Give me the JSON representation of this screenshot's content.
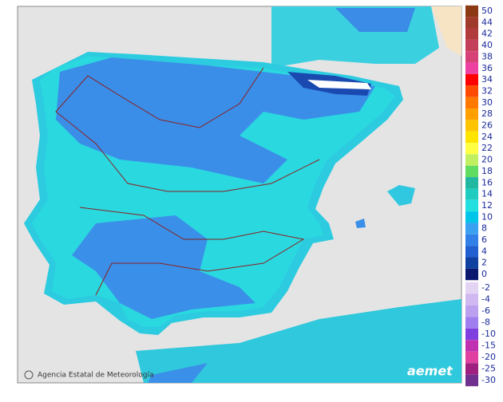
{
  "legend": {
    "warm": [
      {
        "value": 50,
        "color": "#8b3a14"
      },
      {
        "value": 44,
        "color": "#a03a2a"
      },
      {
        "value": 42,
        "color": "#b23c3c"
      },
      {
        "value": 40,
        "color": "#c4405a"
      },
      {
        "value": 38,
        "color": "#d64278"
      },
      {
        "value": 36,
        "color": "#ee40a0"
      },
      {
        "value": 34,
        "color": "#ff0000"
      },
      {
        "value": 32,
        "color": "#ff4a00"
      },
      {
        "value": 30,
        "color": "#ff7800"
      },
      {
        "value": 28,
        "color": "#ffa000"
      },
      {
        "value": 26,
        "color": "#ffc400"
      },
      {
        "value": 24,
        "color": "#ffe400"
      },
      {
        "value": 22,
        "color": "#ffff44"
      },
      {
        "value": 20,
        "color": "#c0f060"
      },
      {
        "value": 18,
        "color": "#60dc60"
      },
      {
        "value": 16,
        "color": "#20b8a0"
      },
      {
        "value": 14,
        "color": "#20ccc0"
      },
      {
        "value": 12,
        "color": "#22e0e0"
      },
      {
        "value": 10,
        "color": "#00c4e8"
      },
      {
        "value": 8,
        "color": "#3aa0f0"
      },
      {
        "value": 6,
        "color": "#3080e8"
      },
      {
        "value": 4,
        "color": "#2060d0"
      },
      {
        "value": 2,
        "color": "#1040a0"
      },
      {
        "value": 0,
        "color": "#0a1870"
      }
    ],
    "cold": [
      {
        "value": -2,
        "color": "#e4d4f4"
      },
      {
        "value": -4,
        "color": "#d0b8f0"
      },
      {
        "value": -6,
        "color": "#bca0f0"
      },
      {
        "value": -8,
        "color": "#a07ef0"
      },
      {
        "value": -10,
        "color": "#8040e0"
      },
      {
        "value": -15,
        "color": "#c030b0"
      },
      {
        "value": -20,
        "color": "#e040a0"
      },
      {
        "value": -25,
        "color": "#a02080"
      },
      {
        "value": -30,
        "color": "#703090"
      }
    ]
  },
  "attribution": "Agencia Estatal de Meteorología",
  "logo": "aemet"
}
